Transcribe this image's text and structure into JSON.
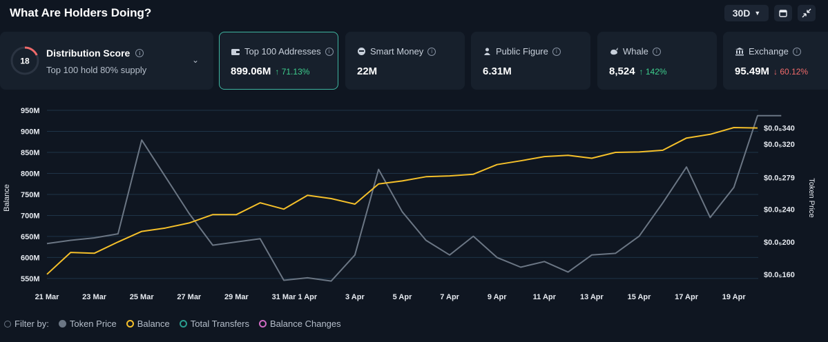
{
  "header": {
    "title": "What Are Holders Doing?",
    "range_label": "30D"
  },
  "distribution": {
    "score": "18",
    "score_value": 18,
    "score_max": 100,
    "title": "Distribution Score",
    "subtitle": "Top 100 hold 80% supply"
  },
  "cards": [
    {
      "label": "Top 100 Addresses",
      "value": "899.06M",
      "change": "↑ 71.13%",
      "direction": "up",
      "icon": "wallet-icon",
      "active": true
    },
    {
      "label": "Smart Money",
      "value": "22M",
      "change": "",
      "direction": "",
      "icon": "smart-money-icon",
      "active": false
    },
    {
      "label": "Public Figure",
      "value": "6.31M",
      "change": "",
      "direction": "",
      "icon": "public-figure-icon",
      "active": false
    },
    {
      "label": "Whale",
      "value": "8,524",
      "change": "↑ 142%",
      "direction": "up",
      "icon": "whale-icon",
      "active": false
    },
    {
      "label": "Exchange",
      "value": "95.49M",
      "change": "↓ 60.12%",
      "direction": "down",
      "icon": "exchange-icon",
      "active": false
    }
  ],
  "legend": {
    "filter_label": "Filter by:",
    "items": [
      {
        "label": "Token Price",
        "color": "#6b7684",
        "style": "filled"
      },
      {
        "label": "Balance",
        "color": "#f5c02a",
        "style": "ring"
      },
      {
        "label": "Total Transfers",
        "color": "#2a9d8f",
        "style": "ring"
      },
      {
        "label": "Balance Changes",
        "color": "#d06bc4",
        "style": "ring"
      }
    ]
  },
  "chart_data": {
    "type": "line",
    "ylabel": "Balance",
    "y2label": "Token Price",
    "ylim": [
      540,
      950
    ],
    "y_ticks": [
      "550M",
      "600M",
      "650M",
      "700M",
      "750M",
      "800M",
      "850M",
      "900M",
      "950M"
    ],
    "y_tick_values": [
      550,
      600,
      650,
      700,
      750,
      800,
      850,
      900,
      950
    ],
    "y2lim": [
      0.15,
      0.3615
    ],
    "y2_ticks": [
      "$0.0₅160",
      "$0.0₅200",
      "$0.0₅240",
      "$0.0₅279",
      "$0.0₅320",
      "$0.0₅340"
    ],
    "y2_tick_values": [
      0.16,
      0.2,
      0.24,
      0.279,
      0.32,
      0.34
    ],
    "x_ticks": [
      "21 Mar",
      "23 Mar",
      "25 Mar",
      "27 Mar",
      "29 Mar",
      "31 Mar",
      "1 Apr",
      "3 Apr",
      "5 Apr",
      "7 Apr",
      "9 Apr",
      "11 Apr",
      "13 Apr",
      "15 Apr",
      "17 Apr",
      "19 Apr"
    ],
    "x_tick_pos": [
      0,
      2,
      4,
      6,
      8,
      10,
      11,
      13,
      15,
      17,
      19,
      21,
      23,
      25,
      27,
      29
    ],
    "grid": true,
    "series": [
      {
        "name": "Balance",
        "color": "#f5c02a",
        "axis": "left",
        "x": [
          0,
          1,
          2,
          3,
          4,
          5,
          6,
          7,
          8,
          9,
          10,
          11,
          12,
          13,
          14,
          15,
          16,
          17,
          18,
          19,
          20,
          21,
          22,
          23,
          24,
          25,
          26,
          27,
          28,
          29,
          30
        ],
        "values": [
          560,
          612,
          610,
          637,
          662,
          670,
          682,
          702,
          702,
          730,
          715,
          748,
          740,
          727,
          775,
          782,
          792,
          794,
          798,
          821,
          830,
          840,
          843,
          836,
          850,
          851,
          855,
          884,
          893,
          909,
          908
        ]
      },
      {
        "name": "Token Price",
        "color": "#6b7684",
        "axis": "right",
        "x": [
          0,
          1,
          2,
          3,
          4,
          5,
          6,
          7,
          8,
          9,
          10,
          11,
          12,
          13,
          14,
          15,
          16,
          17,
          18,
          19,
          20,
          21,
          22,
          23,
          24,
          25,
          26,
          27,
          28,
          29,
          30,
          31
        ],
        "values": [
          0.198,
          0.202,
          0.205,
          0.21,
          0.325,
          0.28,
          0.235,
          0.196,
          0.2,
          0.204,
          0.153,
          0.156,
          0.152,
          0.184,
          0.289,
          0.237,
          0.202,
          0.184,
          0.207,
          0.181,
          0.169,
          0.176,
          0.163,
          0.184,
          0.186,
          0.207,
          0.248,
          0.292,
          0.23,
          0.267,
          0.355,
          0.355
        ]
      }
    ]
  }
}
